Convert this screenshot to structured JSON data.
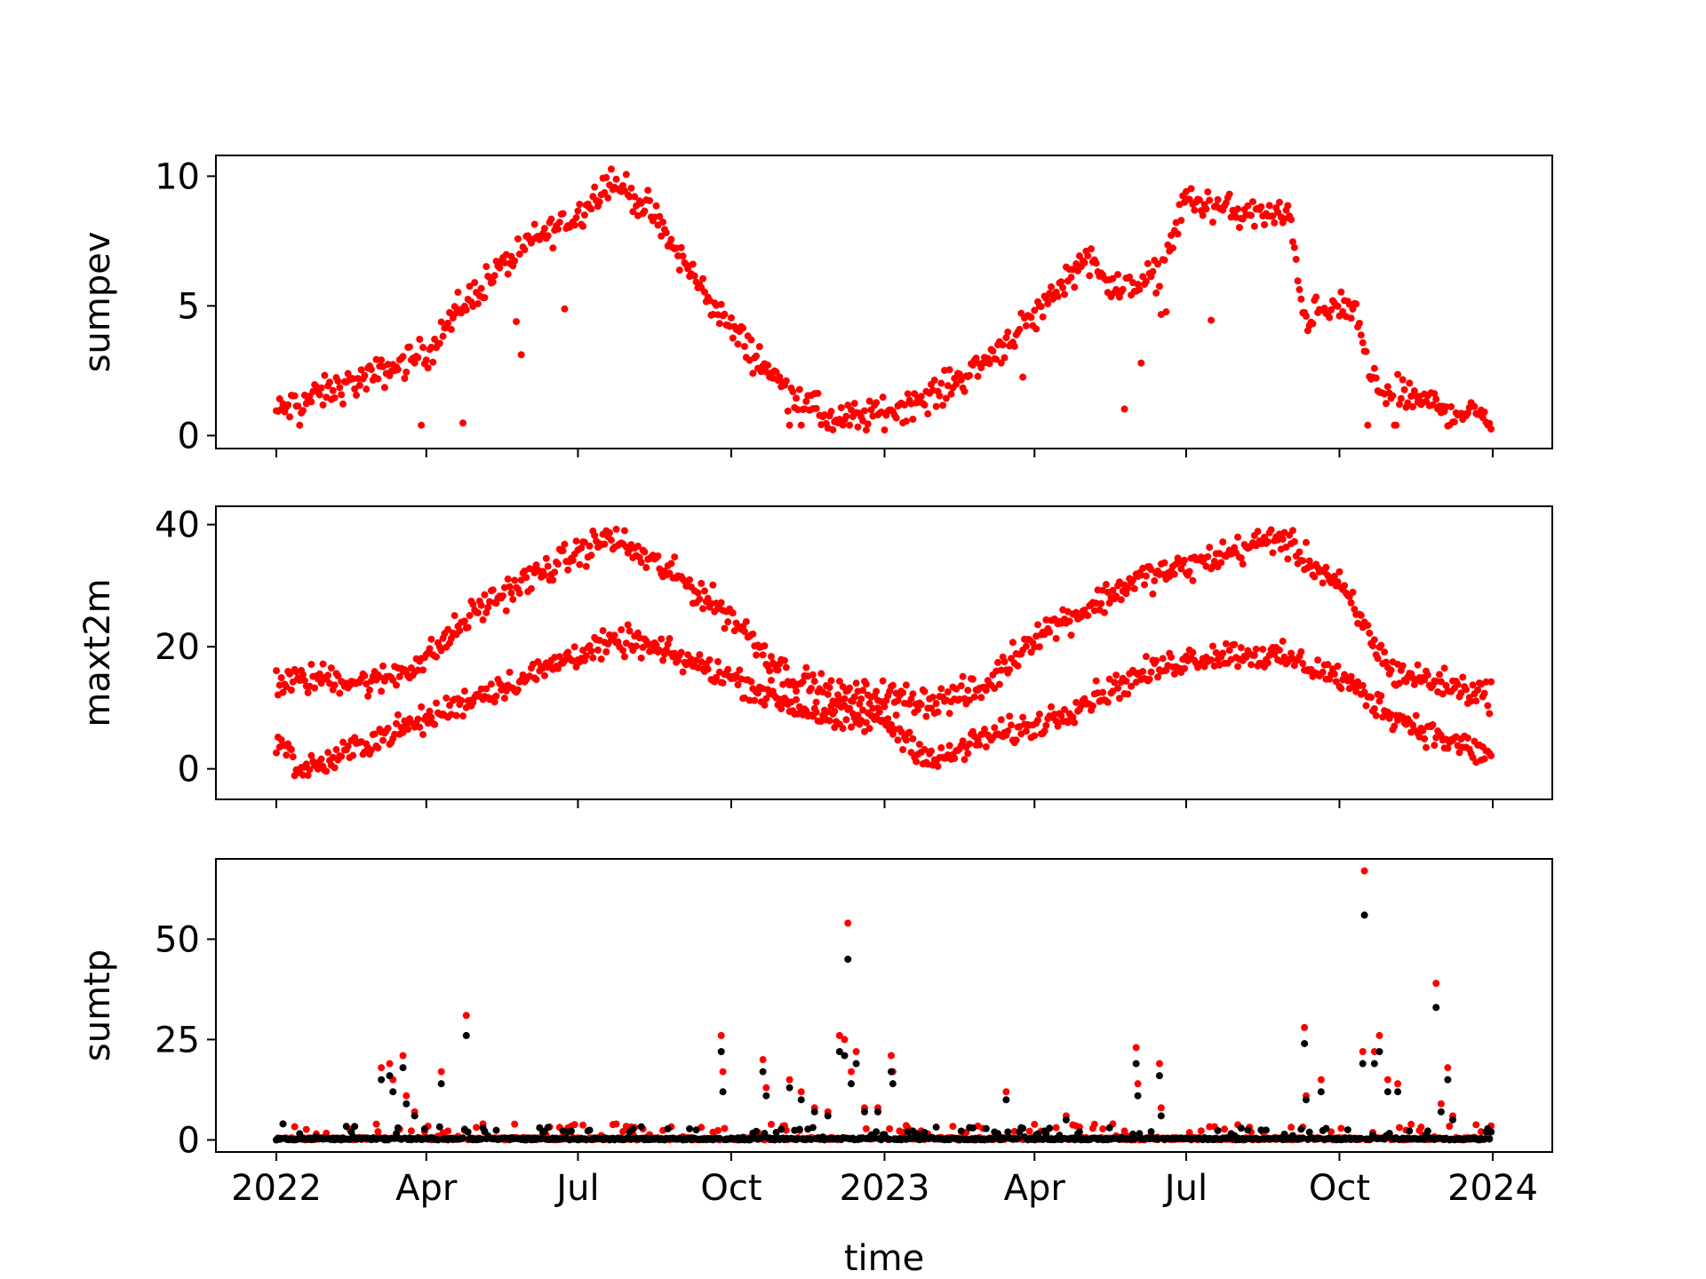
{
  "chart_data": [
    {
      "type": "scatter",
      "ylabel": "sumpev",
      "ylim": [
        -0.5,
        10.8
      ],
      "yticks": [
        0,
        5,
        10
      ],
      "series": [
        {
          "color": "#ff0000",
          "marker_size": 5,
          "knots": [
            [
              "2022-01-01",
              0.9
            ],
            [
              "2022-02-01",
              1.7
            ],
            [
              "2022-03-01",
              2.3
            ],
            [
              "2022-04-01",
              3.2
            ],
            [
              "2022-05-01",
              5.6
            ],
            [
              "2022-06-01",
              7.4
            ],
            [
              "2022-07-01",
              8.5
            ],
            [
              "2022-07-20",
              9.9
            ],
            [
              "2022-08-10",
              8.9
            ],
            [
              "2022-09-01",
              6.8
            ],
            [
              "2022-10-01",
              4.1
            ],
            [
              "2022-11-01",
              1.9
            ],
            [
              "2022-12-01",
              0.5
            ],
            [
              "2023-01-01",
              0.9
            ],
            [
              "2023-02-01",
              1.6
            ],
            [
              "2023-03-01",
              2.8
            ],
            [
              "2023-04-01",
              4.6
            ],
            [
              "2023-05-01",
              6.9
            ],
            [
              "2023-05-25",
              5.5
            ],
            [
              "2023-06-15",
              6.3
            ],
            [
              "2023-07-01",
              9.1
            ],
            [
              "2023-08-01",
              8.6
            ],
            [
              "2023-09-01",
              8.4
            ],
            [
              "2023-09-10",
              4.6
            ],
            [
              "2023-10-10",
              5.0
            ],
            [
              "2023-10-20",
              2.0
            ],
            [
              "2023-11-15",
              1.4
            ],
            [
              "2023-12-31",
              0.6
            ]
          ],
          "noise": 0.6
        }
      ]
    },
    {
      "type": "scatter",
      "ylabel": "maxt2m",
      "ylim": [
        -5,
        43
      ],
      "yticks": [
        0,
        20,
        40
      ],
      "series": [
        {
          "color": "#ff0000",
          "marker_size": 5,
          "knots": [
            [
              "2022-01-01",
              14
            ],
            [
              "2022-02-01",
              15
            ],
            [
              "2022-03-01",
              14
            ],
            [
              "2022-04-01",
              18
            ],
            [
              "2022-05-01",
              26
            ],
            [
              "2022-06-01",
              31
            ],
            [
              "2022-07-20",
              38
            ],
            [
              "2022-09-01",
              31
            ],
            [
              "2022-10-01",
              25
            ],
            [
              "2022-11-01",
              16
            ],
            [
              "2022-12-01",
              12
            ],
            [
              "2023-01-01",
              12
            ],
            [
              "2023-02-01",
              11
            ],
            [
              "2023-03-01",
              13
            ],
            [
              "2023-04-01",
              22
            ],
            [
              "2023-05-01",
              26
            ],
            [
              "2023-06-01",
              31
            ],
            [
              "2023-07-01",
              33
            ],
            [
              "2023-08-25",
              38
            ],
            [
              "2023-10-01",
              30
            ],
            [
              "2023-11-01",
              16
            ],
            [
              "2023-12-31",
              12
            ]
          ],
          "noise": 2.4
        },
        {
          "color": "#ff0000",
          "marker_size": 5,
          "knots": [
            [
              "2022-01-01",
              5
            ],
            [
              "2022-01-15",
              0
            ],
            [
              "2022-02-01",
              1
            ],
            [
              "2022-03-01",
              5
            ],
            [
              "2022-04-01",
              8
            ],
            [
              "2022-05-01",
              12
            ],
            [
              "2022-06-01",
              15
            ],
            [
              "2022-07-01",
              19
            ],
            [
              "2022-08-01",
              21
            ],
            [
              "2022-09-01",
              18
            ],
            [
              "2022-10-01",
              15
            ],
            [
              "2022-11-01",
              11
            ],
            [
              "2022-12-01",
              8
            ],
            [
              "2023-01-01",
              8
            ],
            [
              "2023-02-01",
              1
            ],
            [
              "2023-03-01",
              5
            ],
            [
              "2023-04-01",
              7
            ],
            [
              "2023-05-01",
              11
            ],
            [
              "2023-06-01",
              15
            ],
            [
              "2023-07-01",
              18
            ],
            [
              "2023-08-01",
              19
            ],
            [
              "2023-09-01",
              18
            ],
            [
              "2023-10-01",
              15
            ],
            [
              "2023-11-01",
              9
            ],
            [
              "2023-12-01",
              5
            ],
            [
              "2023-12-31",
              2
            ]
          ],
          "noise": 2.2
        }
      ]
    },
    {
      "type": "scatter",
      "ylabel": "sumtp",
      "xlabel": "time",
      "ylim": [
        -3,
        70
      ],
      "yticks": [
        0,
        25,
        50
      ],
      "xticklabels": [
        [
          "2022-01-01",
          "2022"
        ],
        [
          "2022-04-01",
          "Apr"
        ],
        [
          "2022-07-01",
          "Jul"
        ],
        [
          "2022-10-01",
          "Oct"
        ],
        [
          "2023-01-01",
          "2023"
        ],
        [
          "2023-04-01",
          "Apr"
        ],
        [
          "2023-07-01",
          "Jul"
        ],
        [
          "2023-10-01",
          "Oct"
        ],
        [
          "2024-01-01",
          "2024"
        ]
      ],
      "series": [
        {
          "color": "#ff0000",
          "marker_size": 5,
          "events": [
            [
              "2022-01-05",
              4
            ],
            [
              "2022-02-15",
              2
            ],
            [
              "2022-03-05",
              18
            ],
            [
              "2022-03-10",
              19
            ],
            [
              "2022-03-12",
              15
            ],
            [
              "2022-03-18",
              21
            ],
            [
              "2022-03-20",
              11
            ],
            [
              "2022-03-25",
              7
            ],
            [
              "2022-04-10",
              17
            ],
            [
              "2022-04-25",
              31
            ],
            [
              "2022-05-05",
              4
            ],
            [
              "2022-06-25",
              3
            ],
            [
              "2022-09-25",
              26
            ],
            [
              "2022-09-26",
              17
            ],
            [
              "2022-10-20",
              20
            ],
            [
              "2022-10-22",
              13
            ],
            [
              "2022-11-05",
              15
            ],
            [
              "2022-11-12",
              12
            ],
            [
              "2022-11-20",
              8
            ],
            [
              "2022-11-28",
              7
            ],
            [
              "2022-12-05",
              26
            ],
            [
              "2022-12-08",
              25
            ],
            [
              "2022-12-10",
              54
            ],
            [
              "2022-12-12",
              17
            ],
            [
              "2022-12-15",
              22
            ],
            [
              "2022-12-20",
              8
            ],
            [
              "2022-12-28",
              8
            ],
            [
              "2023-01-05",
              21
            ],
            [
              "2023-01-06",
              17
            ],
            [
              "2023-01-15",
              3
            ],
            [
              "2023-03-15",
              12
            ],
            [
              "2023-04-20",
              6
            ],
            [
              "2023-06-01",
              23
            ],
            [
              "2023-06-02",
              14
            ],
            [
              "2023-06-15",
              19
            ],
            [
              "2023-06-16",
              8
            ],
            [
              "2023-09-10",
              28
            ],
            [
              "2023-09-11",
              11
            ],
            [
              "2023-09-20",
              15
            ],
            [
              "2023-10-15",
              22
            ],
            [
              "2023-10-16",
              67
            ],
            [
              "2023-10-22",
              22
            ],
            [
              "2023-10-25",
              26
            ],
            [
              "2023-10-30",
              15
            ],
            [
              "2023-11-05",
              14
            ],
            [
              "2023-11-28",
              39
            ],
            [
              "2023-12-01",
              9
            ],
            [
              "2023-12-05",
              18
            ],
            [
              "2023-12-08",
              6
            ],
            [
              "2023-12-28",
              2
            ]
          ]
        },
        {
          "color": "#000000",
          "marker_size": 5,
          "events": [
            [
              "2022-01-05",
              4
            ],
            [
              "2022-02-15",
              2
            ],
            [
              "2022-03-05",
              15
            ],
            [
              "2022-03-10",
              16
            ],
            [
              "2022-03-12",
              12
            ],
            [
              "2022-03-18",
              18
            ],
            [
              "2022-03-20",
              9
            ],
            [
              "2022-03-25",
              6
            ],
            [
              "2022-04-10",
              14
            ],
            [
              "2022-04-25",
              26
            ],
            [
              "2022-05-05",
              3
            ],
            [
              "2022-06-25",
              2
            ],
            [
              "2022-09-25",
              22
            ],
            [
              "2022-09-26",
              12
            ],
            [
              "2022-10-20",
              17
            ],
            [
              "2022-10-22",
              11
            ],
            [
              "2022-11-05",
              13
            ],
            [
              "2022-11-12",
              10
            ],
            [
              "2022-11-20",
              7
            ],
            [
              "2022-11-28",
              6
            ],
            [
              "2022-12-05",
              22
            ],
            [
              "2022-12-08",
              21
            ],
            [
              "2022-12-10",
              45
            ],
            [
              "2022-12-12",
              14
            ],
            [
              "2022-12-15",
              19
            ],
            [
              "2022-12-20",
              7
            ],
            [
              "2022-12-28",
              7
            ],
            [
              "2023-01-05",
              17
            ],
            [
              "2023-01-06",
              14
            ],
            [
              "2023-01-15",
              2
            ],
            [
              "2023-03-15",
              10
            ],
            [
              "2023-04-20",
              5
            ],
            [
              "2023-06-01",
              19
            ],
            [
              "2023-06-02",
              11
            ],
            [
              "2023-06-15",
              16
            ],
            [
              "2023-06-16",
              6
            ],
            [
              "2023-09-10",
              24
            ],
            [
              "2023-09-11",
              10
            ],
            [
              "2023-09-20",
              12
            ],
            [
              "2023-10-15",
              19
            ],
            [
              "2023-10-16",
              56
            ],
            [
              "2023-10-22",
              19
            ],
            [
              "2023-10-25",
              22
            ],
            [
              "2023-10-30",
              12
            ],
            [
              "2023-11-05",
              12
            ],
            [
              "2023-11-28",
              33
            ],
            [
              "2023-12-01",
              7
            ],
            [
              "2023-12-05",
              15
            ],
            [
              "2023-12-08",
              5
            ],
            [
              "2023-12-28",
              2
            ]
          ]
        }
      ]
    }
  ]
}
